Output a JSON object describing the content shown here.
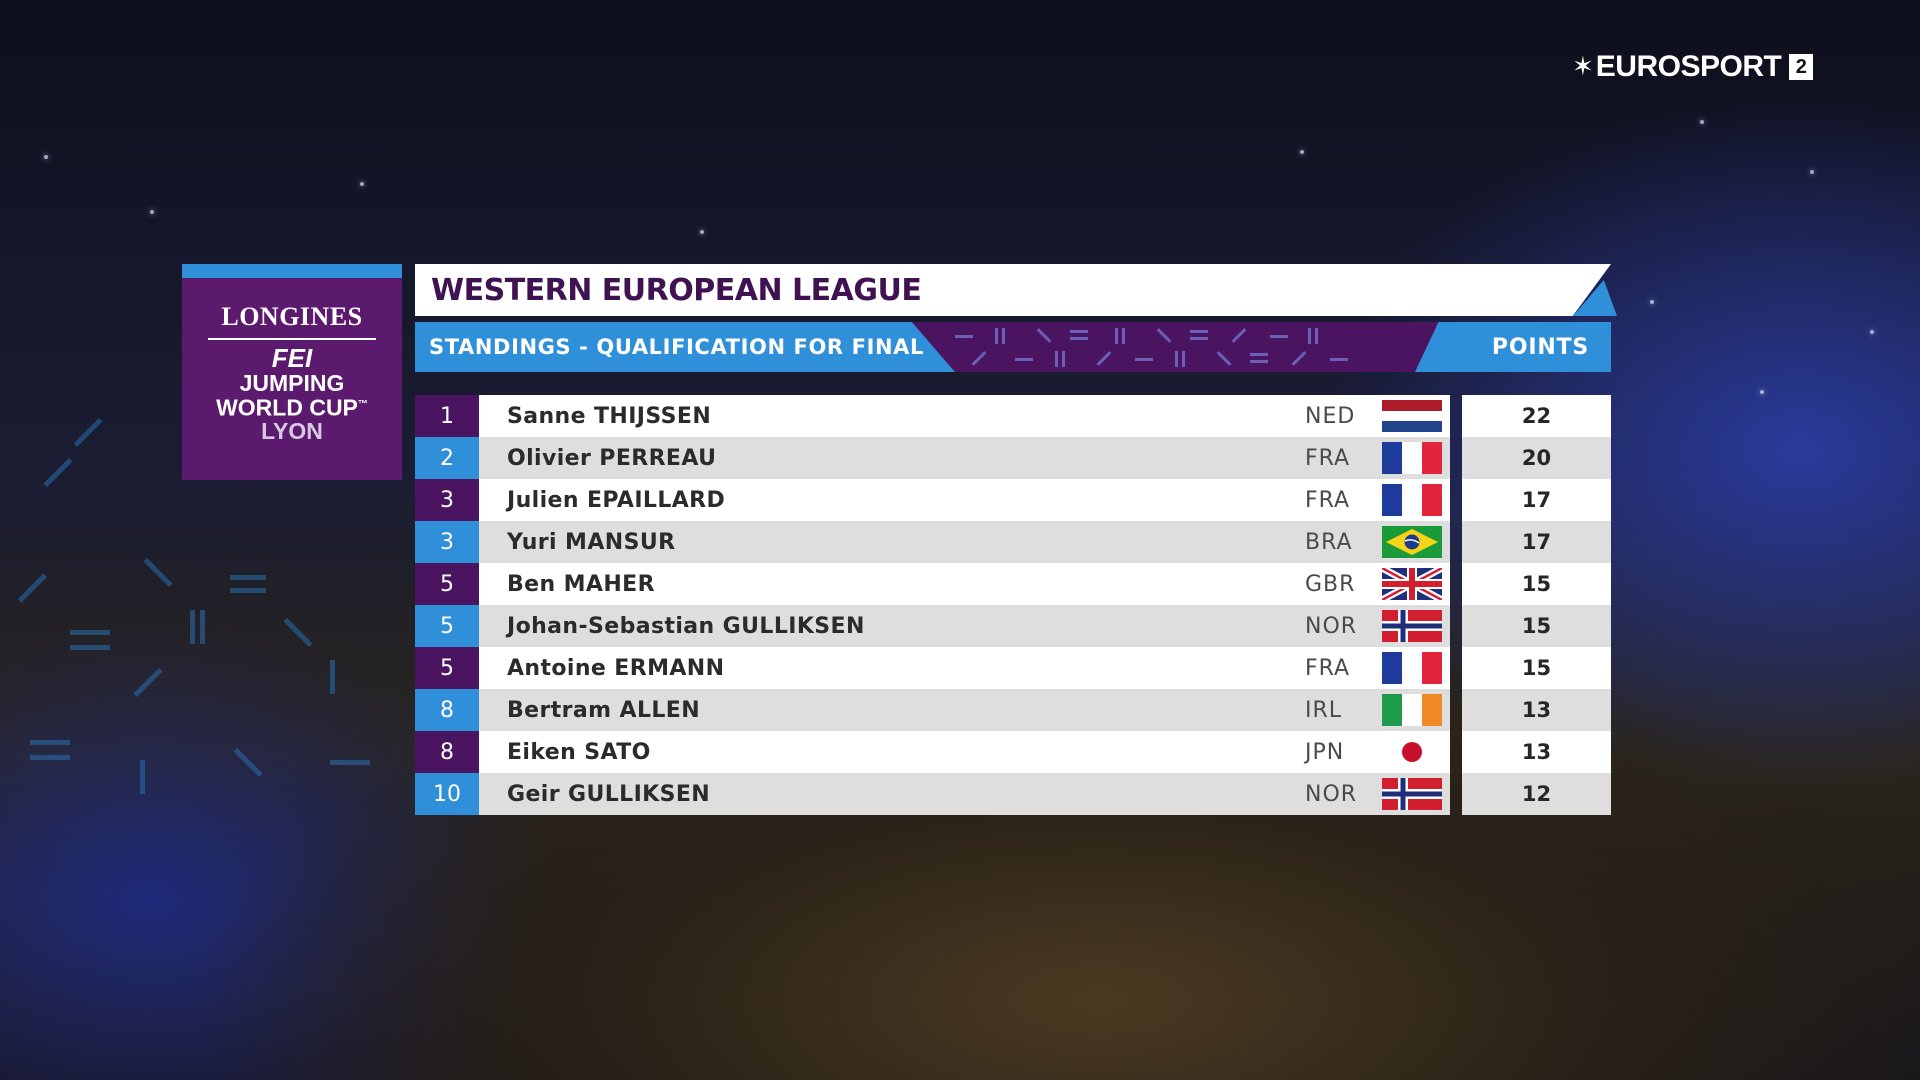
{
  "broadcaster": {
    "name": "EUROSPORT",
    "channel": "2"
  },
  "event": {
    "brand": "LONGINES",
    "fei": "FEI",
    "line1": "JUMPING",
    "line2": "WORLD CUP",
    "tm": "™",
    "city": "LYON"
  },
  "standings": {
    "title": "WESTERN EUROPEAN LEAGUE",
    "subtitle": "STANDINGS - QUALIFICATION FOR FINAL",
    "points_header": "POINTS",
    "rows": [
      {
        "rank": "1",
        "name": "Sanne THIJSSEN",
        "nation": "NED",
        "flag": "netherlands-flag-icon",
        "points": "22"
      },
      {
        "rank": "2",
        "name": "Olivier PERREAU",
        "nation": "FRA",
        "flag": "france-flag-icon",
        "points": "20"
      },
      {
        "rank": "3",
        "name": "Julien EPAILLARD",
        "nation": "FRA",
        "flag": "france-flag-icon",
        "points": "17"
      },
      {
        "rank": "3",
        "name": "Yuri MANSUR",
        "nation": "BRA",
        "flag": "brazil-flag-icon",
        "points": "17"
      },
      {
        "rank": "5",
        "name": "Ben MAHER",
        "nation": "GBR",
        "flag": "uk-flag-icon",
        "points": "15"
      },
      {
        "rank": "5",
        "name": "Johan-Sebastian GULLIKSEN",
        "nation": "NOR",
        "flag": "norway-flag-icon",
        "points": "15"
      },
      {
        "rank": "5",
        "name": "Antoine ERMANN",
        "nation": "FRA",
        "flag": "france-flag-icon",
        "points": "15"
      },
      {
        "rank": "8",
        "name": "Bertram ALLEN",
        "nation": "IRL",
        "flag": "ireland-flag-icon",
        "points": "13"
      },
      {
        "rank": "8",
        "name": "Eiken SATO",
        "nation": "JPN",
        "flag": "japan-flag-icon",
        "points": "13"
      },
      {
        "rank": "10",
        "name": "Geir GULLIKSEN",
        "nation": "NOR",
        "flag": "norway-flag-icon",
        "points": "12"
      }
    ]
  },
  "colors": {
    "purple": "#4a1461",
    "blue": "#2f8fd8",
    "title_text": "#3f1252"
  }
}
